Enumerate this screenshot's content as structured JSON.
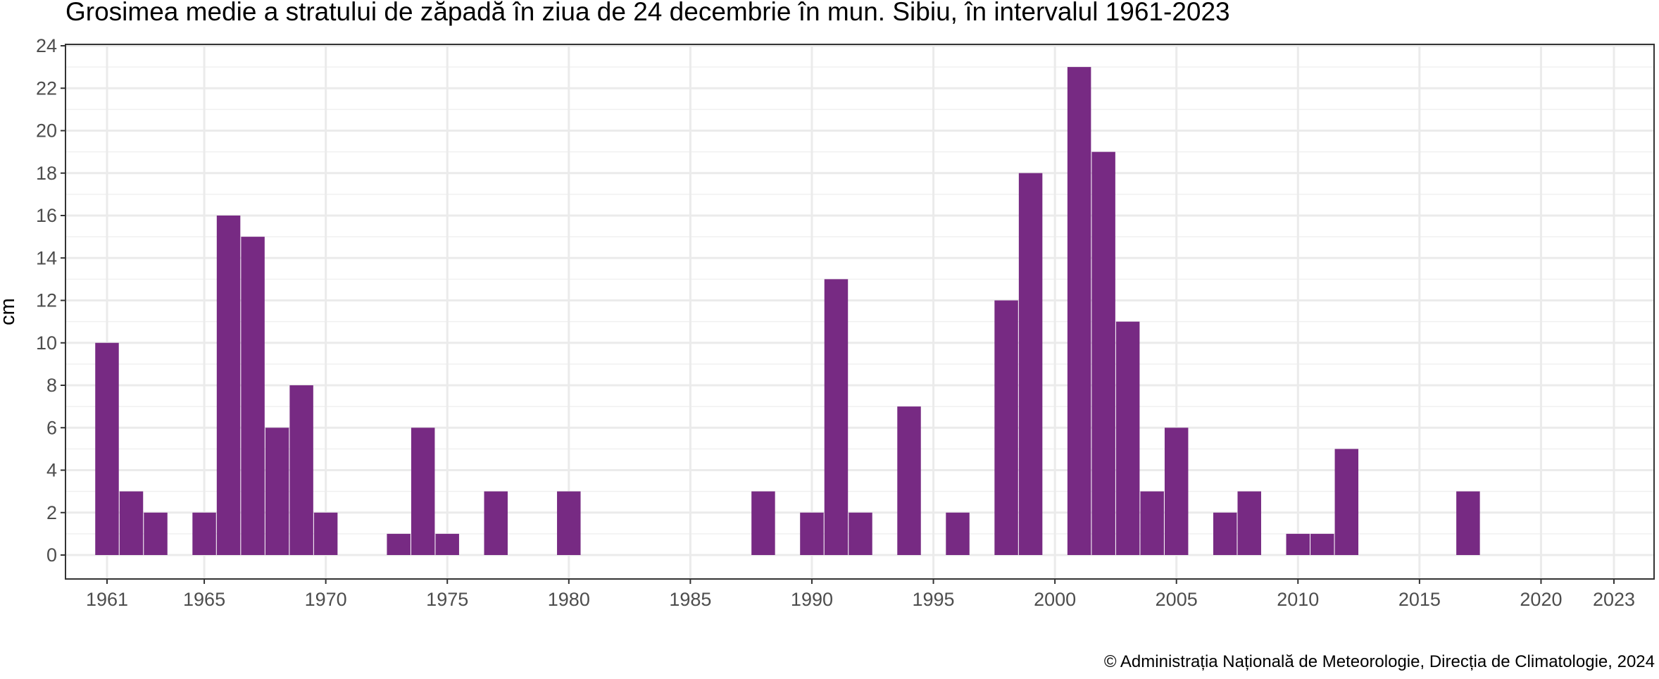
{
  "chart_data": {
    "type": "bar",
    "title": "Grosimea medie a stratului de zăpadă în ziua de 24 decembrie în mun. Sibiu, în intervalul 1961-2023",
    "xlabel": "",
    "ylabel": "cm",
    "caption": "© Administrația Națională de Meteorologie, Direcția de Climatologie, 2024",
    "bar_color": "#772a83",
    "grid": true,
    "xlim": [
      1961,
      2023
    ],
    "ylim": [
      0,
      24
    ],
    "x_ticks": [
      "1961",
      "1965",
      "1970",
      "1975",
      "1980",
      "1985",
      "1990",
      "1995",
      "2000",
      "2005",
      "2010",
      "2015",
      "2020",
      "2023"
    ],
    "y_ticks": [
      "0",
      "2",
      "4",
      "6",
      "8",
      "10",
      "12",
      "14",
      "16",
      "18",
      "20",
      "22",
      "24"
    ],
    "x": [
      1961,
      1962,
      1963,
      1964,
      1965,
      1966,
      1967,
      1968,
      1969,
      1970,
      1971,
      1972,
      1973,
      1974,
      1975,
      1976,
      1977,
      1978,
      1979,
      1980,
      1981,
      1982,
      1983,
      1984,
      1985,
      1986,
      1987,
      1988,
      1989,
      1990,
      1991,
      1992,
      1993,
      1994,
      1995,
      1996,
      1997,
      1998,
      1999,
      2000,
      2001,
      2002,
      2003,
      2004,
      2005,
      2006,
      2007,
      2008,
      2009,
      2010,
      2011,
      2012,
      2013,
      2014,
      2015,
      2016,
      2017,
      2018,
      2019,
      2020,
      2021,
      2022,
      2023
    ],
    "values": [
      10,
      3,
      2,
      0,
      2,
      16,
      15,
      6,
      8,
      2,
      0,
      0,
      1,
      6,
      1,
      0,
      3,
      0,
      0,
      3,
      0,
      0,
      0,
      0,
      0,
      0,
      0,
      3,
      0,
      2,
      13,
      2,
      0,
      7,
      0,
      2,
      0,
      12,
      18,
      0,
      23,
      19,
      11,
      3,
      6,
      0,
      2,
      3,
      0,
      1,
      1,
      5,
      0,
      0,
      0,
      0,
      3,
      0,
      0,
      0,
      0,
      0,
      0
    ]
  }
}
